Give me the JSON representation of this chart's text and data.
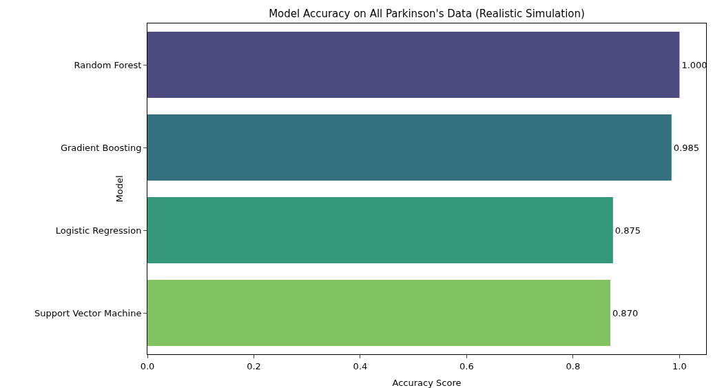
{
  "chart_data": {
    "type": "bar",
    "orientation": "horizontal",
    "title": "Model Accuracy on All Parkinson's Data (Realistic Simulation)",
    "xlabel": "Accuracy Score",
    "ylabel": "Model",
    "categories": [
      "Random Forest",
      "Gradient Boosting",
      "Logistic Regression",
      "Support Vector Machine"
    ],
    "values": [
      1.0,
      0.985,
      0.875,
      0.87
    ],
    "value_labels": [
      "1.000",
      "0.985",
      "0.875",
      "0.870"
    ],
    "colors": [
      "#4c4a7e",
      "#35707f",
      "#35977a",
      "#81c263"
    ],
    "xlim": [
      0,
      1.05
    ],
    "xticks": [
      {
        "value": 0,
        "label": "0.0"
      },
      {
        "value": 0.2,
        "label": "0.2"
      },
      {
        "value": 0.4,
        "label": "0.4"
      },
      {
        "value": 0.6,
        "label": "0.6"
      },
      {
        "value": 0.8,
        "label": "0.8"
      },
      {
        "value": 1.0,
        "label": "1.0"
      }
    ],
    "grid": false
  }
}
